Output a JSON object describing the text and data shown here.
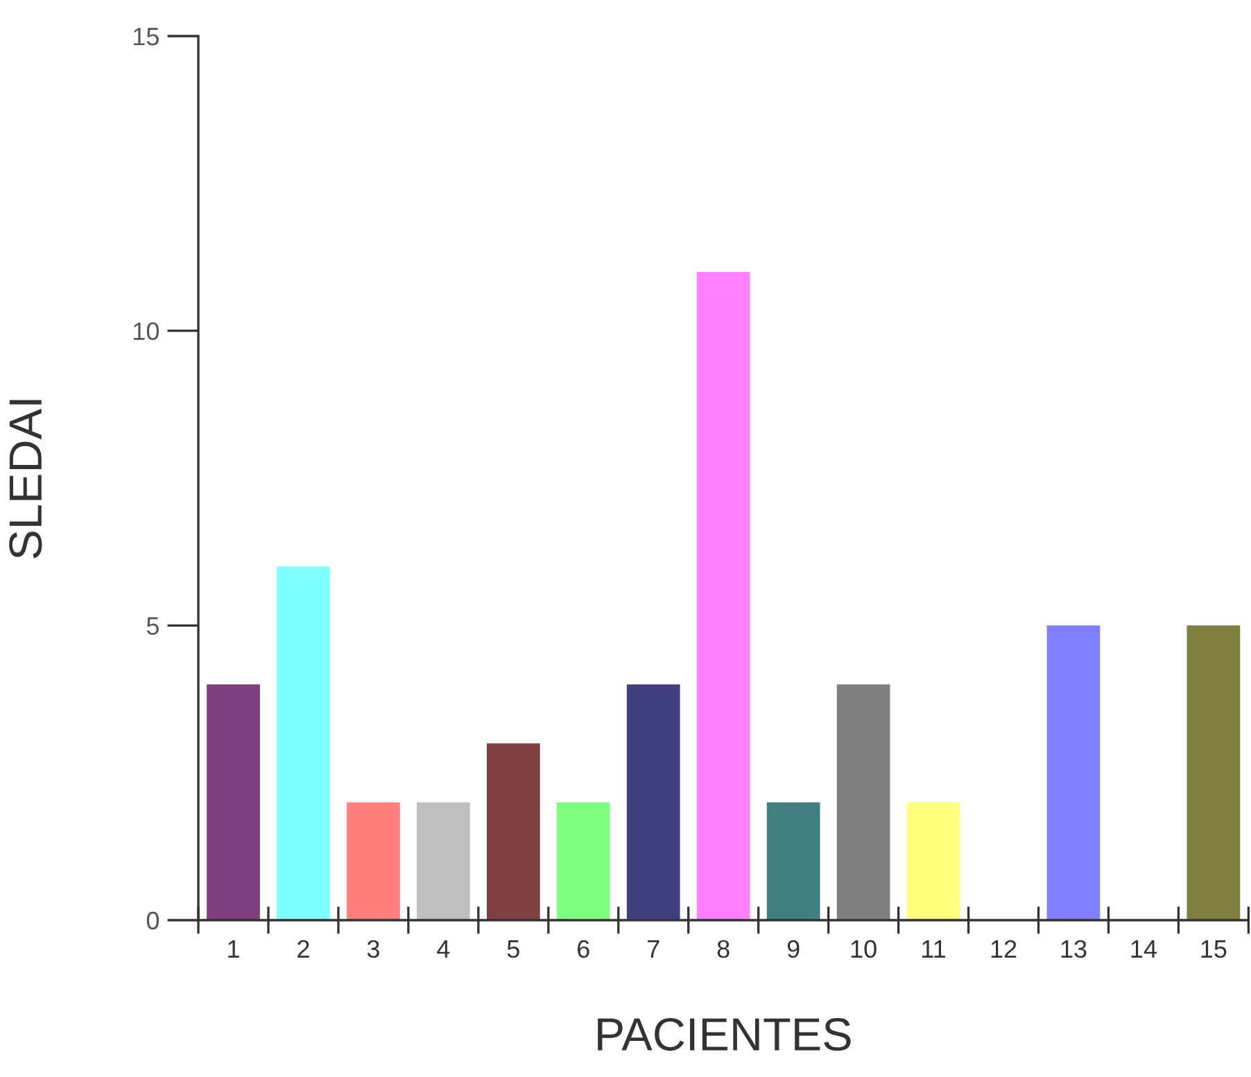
{
  "chart_data": {
    "type": "bar",
    "xlabel": "PACIENTES",
    "ylabel": "SLEDAI",
    "categories": [
      "1",
      "2",
      "3",
      "4",
      "5",
      "6",
      "7",
      "8",
      "9",
      "10",
      "11",
      "12",
      "13",
      "14",
      "15"
    ],
    "values": [
      4,
      6,
      2,
      2,
      3,
      2,
      4,
      11,
      2,
      4,
      2,
      0,
      5,
      0,
      5
    ],
    "colors": [
      "#7f3f7f",
      "#7fffff",
      "#ff7f7f",
      "#bfbfbf",
      "#7f3f3f",
      "#7fff7f",
      "#3f3f7f",
      "#ff7fff",
      "#3f7f7f",
      "#7f7f7f",
      "#ffff7f",
      "#bf7f3f",
      "#7f7fff",
      "#3fbfbf",
      "#7f7f3f"
    ],
    "ylim": [
      0,
      15
    ],
    "yticks": [
      0,
      5,
      10,
      15
    ],
    "grid": false
  }
}
